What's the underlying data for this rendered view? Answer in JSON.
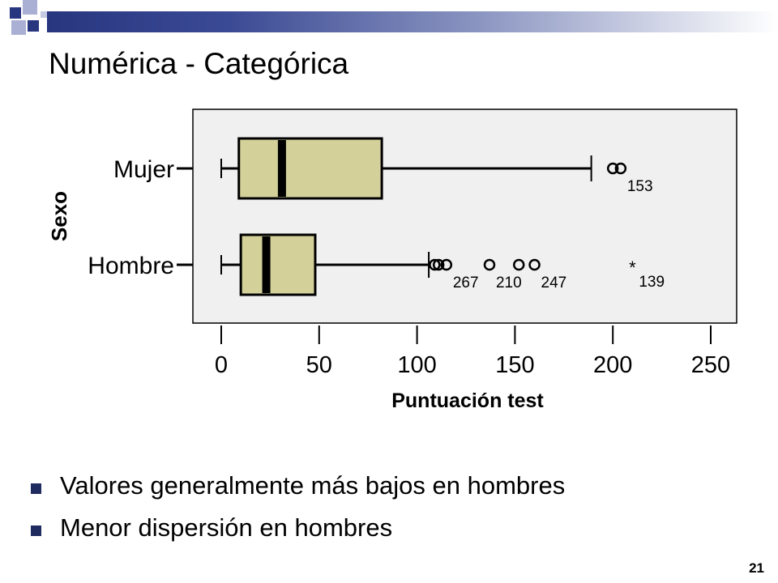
{
  "slide": {
    "title": "Numérica - Categórica",
    "bullets": [
      "Valores generalmente más bajos en hombres",
      "Menor dispersión en hombres"
    ],
    "page_number": "21"
  },
  "colors": {
    "box_fill": "#d4d09a",
    "plot_bg": "#f0f0f0",
    "accent": "#283680"
  },
  "chart_data": {
    "type": "boxplot",
    "title": "",
    "xlabel": "Puntuación test",
    "ylabel": "Sexo",
    "xlim": [
      -5,
      262
    ],
    "xticks": [
      0,
      50,
      100,
      150,
      200,
      250
    ],
    "grid": false,
    "categories": [
      "Mujer",
      "Hombre"
    ],
    "boxes": [
      {
        "category": "Mujer",
        "whisker_low": 0,
        "q1": 9,
        "median": 31,
        "q3": 82,
        "whisker_high": 189,
        "outliers": [
          {
            "value": 200,
            "marker": "circle",
            "label": ""
          },
          {
            "value": 204,
            "marker": "circle",
            "label": "153"
          }
        ]
      },
      {
        "category": "Hombre",
        "whisker_low": 0,
        "q1": 10,
        "median": 23,
        "q3": 48,
        "whisker_high": 106,
        "outliers": [
          {
            "value": 109,
            "marker": "circle",
            "label": ""
          },
          {
            "value": 111,
            "marker": "circle",
            "label": ""
          },
          {
            "value": 115,
            "marker": "circle",
            "label": "267"
          },
          {
            "value": 137,
            "marker": "circle",
            "label": "210"
          },
          {
            "value": 152,
            "marker": "circle",
            "label": ""
          },
          {
            "value": 160,
            "marker": "circle",
            "label": "247"
          },
          {
            "value": 210,
            "marker": "star",
            "label": "139"
          }
        ]
      }
    ]
  }
}
